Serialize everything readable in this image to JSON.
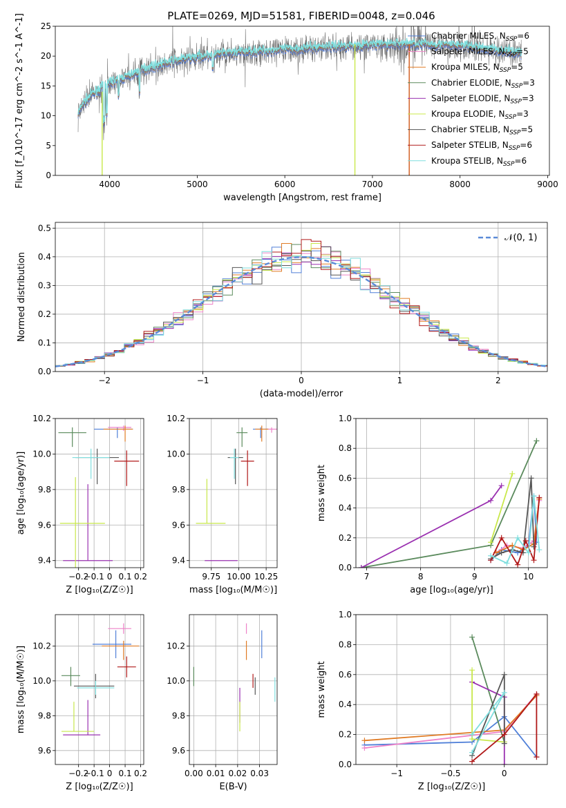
{
  "title": "PLATE=0269, MJD=51581, FIBERID=0048, z=0.046",
  "colors": [
    "#4f7fd8",
    "#ee82c8",
    "#e07b24",
    "#5a8a5c",
    "#9a30b0",
    "#c8e84a",
    "#555555",
    "#b01818",
    "#7fdede"
  ],
  "chart_data": [
    {
      "id": "spectrum",
      "type": "line",
      "xlabel": "wavelength [Angstrom, rest frame]",
      "ylabel": "Flux [f_λ10^-17 erg cm^-2 s^-1 A^-1]",
      "xlim": [
        3380,
        9020
      ],
      "ylim": [
        0,
        25
      ],
      "xticks": [
        4000,
        5000,
        6000,
        7000,
        8000,
        9000
      ],
      "yticks": [
        0,
        5,
        10,
        15,
        20,
        25
      ],
      "legend_placement": "top-right",
      "legend": [
        {
          "label": "Chabrier MILES, N",
          "sub": "SSP",
          "suffix": "=6"
        },
        {
          "label": "Salpeter MILES, N",
          "sub": "SSP",
          "suffix": "=5"
        },
        {
          "label": "Kroupa MILES, N",
          "sub": "SSP",
          "suffix": "=5"
        },
        {
          "label": "Chabrier ELODIE, N",
          "sub": "SSP",
          "suffix": "=3"
        },
        {
          "label": "Salpeter ELODIE, N",
          "sub": "SSP",
          "suffix": "=3"
        },
        {
          "label": "Kroupa ELODIE, N",
          "sub": "SSP",
          "suffix": "=3"
        },
        {
          "label": "Chabrier STELIB, N",
          "sub": "SSP",
          "suffix": "=5"
        },
        {
          "label": "Salpeter STELIB, N",
          "sub": "SSP",
          "suffix": "=6"
        },
        {
          "label": "Kroupa STELIB, N",
          "sub": "SSP",
          "suffix": "=6"
        }
      ],
      "continuum": [
        [
          3600,
          9
        ],
        [
          3700,
          12
        ],
        [
          3800,
          13.5
        ],
        [
          3900,
          14.5
        ],
        [
          4000,
          15.5
        ],
        [
          4200,
          16.5
        ],
        [
          4400,
          17.8
        ],
        [
          4600,
          18.6
        ],
        [
          4800,
          19.3
        ],
        [
          5000,
          19.8
        ],
        [
          5200,
          20.2
        ],
        [
          5500,
          20.6
        ],
        [
          6000,
          21.0
        ],
        [
          6500,
          21.5
        ],
        [
          7000,
          21.8
        ],
        [
          7400,
          22.0
        ],
        [
          8000,
          21.7
        ],
        [
          8500,
          20.8
        ],
        [
          8700,
          20.5
        ]
      ],
      "data_range": [
        3640,
        8700
      ]
    },
    {
      "id": "residuals",
      "type": "histogram",
      "xlabel": "(data-model)/error",
      "ylabel": "Normed distribution",
      "xlim": [
        -2.5,
        2.5
      ],
      "ylim": [
        0,
        0.52
      ],
      "xticks": [
        -2,
        -1,
        0,
        1,
        2
      ],
      "yticks": [
        0.0,
        0.1,
        0.2,
        0.3,
        0.4,
        0.5
      ],
      "grid": true,
      "legend": "𝒩(0, 1)",
      "legend_placement": "top-right",
      "bin_width": 0.1
    },
    {
      "id": "age-vs-Z",
      "type": "errorbar",
      "xlabel": "Z [log₁₀(Z/Z☉)]",
      "ylabel": "age  [log₁₀(age/yr)]",
      "xlim": [
        -0.35,
        0.22
      ],
      "ylim": [
        9.36,
        10.2
      ],
      "xticks": [
        -0.2,
        -0.1,
        0.0,
        0.1,
        0.2
      ],
      "yticks": [
        9.4,
        9.6,
        9.8,
        10.0,
        10.2
      ],
      "grid": true,
      "points": [
        {
          "c": 0,
          "x": 0.05,
          "y": 10.14,
          "xe": [
            0.15,
            0.1
          ],
          "ye": [
            0.05,
            0.01
          ]
        },
        {
          "c": 1,
          "x": 0.09,
          "y": 10.15,
          "xe": [
            0.1,
            0.05
          ],
          "ye": [
            0.02,
            0.01
          ]
        },
        {
          "c": 2,
          "x": 0.1,
          "y": 10.14,
          "xe": [
            0.14,
            0.05
          ],
          "ye": [
            0.07,
            0.02
          ]
        },
        {
          "c": 3,
          "x": -0.24,
          "y": 10.12,
          "xe": [
            0.09,
            0.09
          ],
          "ye": [
            0.08,
            0.03
          ]
        },
        {
          "c": 4,
          "x": -0.14,
          "y": 9.4,
          "xe": [
            0.16,
            0.16
          ],
          "ye": [
            0.0,
            0.43
          ]
        },
        {
          "c": 5,
          "x": -0.22,
          "y": 9.61,
          "xe": [
            0.1,
            0.19
          ],
          "ye": [
            0.3,
            0.26
          ]
        },
        {
          "c": 6,
          "x": -0.08,
          "y": 9.98,
          "xe": [
            0.14,
            0.14
          ],
          "ye": [
            0.15,
            0.05
          ]
        },
        {
          "c": 7,
          "x": 0.11,
          "y": 9.96,
          "xe": [
            0.08,
            0.08
          ],
          "ye": [
            0.14,
            0.06
          ]
        },
        {
          "c": 8,
          "x": -0.12,
          "y": 9.98,
          "xe": [
            0.12,
            0.12
          ],
          "ye": [
            0.12,
            0.05
          ]
        }
      ]
    },
    {
      "id": "age-vs-mass",
      "type": "errorbar",
      "xlabel": "mass [log₁₀(M/M☉)]",
      "ylabel": "",
      "xlim": [
        9.55,
        10.35
      ],
      "ylim": [
        9.36,
        10.2
      ],
      "xticks": [
        9.75,
        10.0,
        10.25
      ],
      "tick_labels": [
        "9.75",
        "10.00",
        "10.25"
      ],
      "yticks": [
        9.4,
        9.6,
        9.8,
        10.0,
        10.2
      ],
      "grid": true,
      "points": [
        {
          "c": 0,
          "x": 10.2,
          "y": 10.14,
          "xe": [
            0.07,
            0.07
          ],
          "ye": [
            0.05,
            0.01
          ]
        },
        {
          "c": 1,
          "x": 10.3,
          "y": 10.14,
          "xe": [
            0.05,
            0.05
          ],
          "ye": [
            0.02,
            0.01
          ]
        },
        {
          "c": 2,
          "x": 10.21,
          "y": 10.14,
          "xe": [
            0.06,
            0.06
          ],
          "ye": [
            0.07,
            0.02
          ]
        },
        {
          "c": 3,
          "x": 10.03,
          "y": 10.12,
          "xe": [
            0.05,
            0.05
          ],
          "ye": [
            0.08,
            0.03
          ]
        },
        {
          "c": 4,
          "x": 9.69,
          "y": 9.4,
          "xe": [
            0.0,
            0.3
          ],
          "ye": [
            0.0,
            0.0
          ]
        },
        {
          "c": 5,
          "x": 9.71,
          "y": 9.61,
          "xe": [
            0.1,
            0.17
          ],
          "ye": [
            0.0,
            0.25
          ]
        },
        {
          "c": 6,
          "x": 9.97,
          "y": 9.98,
          "xe": [
            0.07,
            0.07
          ],
          "ye": [
            0.15,
            0.05
          ]
        },
        {
          "c": 7,
          "x": 10.08,
          "y": 9.96,
          "xe": [
            0.06,
            0.06
          ],
          "ye": [
            0.14,
            0.06
          ]
        },
        {
          "c": 8,
          "x": 9.96,
          "y": 9.98,
          "xe": [
            0.04,
            0.04
          ],
          "ye": [
            0.12,
            0.05
          ]
        }
      ]
    },
    {
      "id": "weight-vs-age",
      "type": "line",
      "xlabel": "age  [log₁₀(age/yr)]",
      "ylabel": "mass weight",
      "xlim": [
        6.8,
        10.35
      ],
      "ylim": [
        0,
        1
      ],
      "xticks": [
        7,
        8,
        9,
        10
      ],
      "yticks": [
        0.0,
        0.2,
        0.4,
        0.6,
        0.8,
        1.0
      ],
      "grid": true,
      "series": [
        {
          "c": 0,
          "x": [
            9.3,
            9.5,
            9.8,
            10.0,
            10.1,
            10.15
          ],
          "y": [
            0.05,
            0.12,
            0.1,
            0.15,
            0.48,
            0.17
          ]
        },
        {
          "c": 1,
          "x": [
            9.4,
            9.6,
            9.9,
            10.1,
            10.2
          ],
          "y": [
            0.1,
            0.15,
            0.13,
            0.18,
            0.45
          ]
        },
        {
          "c": 2,
          "x": [
            9.4,
            9.7,
            9.9,
            10.1,
            10.2
          ],
          "y": [
            0.1,
            0.15,
            0.12,
            0.16,
            0.46
          ]
        },
        {
          "c": 3,
          "x": [
            6.9,
            9.3,
            10.15
          ],
          "y": [
            0.0,
            0.15,
            0.85
          ]
        },
        {
          "c": 4,
          "x": [
            6.9,
            9.3,
            9.5
          ],
          "y": [
            0.0,
            0.45,
            0.55
          ]
        },
        {
          "c": 5,
          "x": [
            9.3,
            9.7
          ],
          "y": [
            0.17,
            0.63
          ]
        },
        {
          "c": 6,
          "x": [
            9.3,
            9.5,
            9.7,
            9.9,
            10.05,
            10.1
          ],
          "y": [
            0.06,
            0.1,
            0.12,
            0.1,
            0.6,
            0.14
          ]
        },
        {
          "c": 7,
          "x": [
            9.3,
            9.5,
            9.8,
            9.95,
            10.1,
            10.2
          ],
          "y": [
            0.05,
            0.2,
            0.02,
            0.18,
            0.05,
            0.47
          ]
        },
        {
          "c": 8,
          "x": [
            9.3,
            9.6,
            9.8,
            10.0,
            10.1,
            10.2
          ],
          "y": [
            0.08,
            0.03,
            0.2,
            0.1,
            0.48,
            0.12
          ]
        }
      ]
    },
    {
      "id": "mass-vs-Z",
      "type": "errorbar",
      "xlabel": "Z [log₁₀(Z/Z☉)]",
      "ylabel": "mass [log₁₀(M/M☉)]",
      "xlim": [
        -0.35,
        0.22
      ],
      "ylim": [
        9.52,
        10.38
      ],
      "xticks": [
        -0.2,
        -0.1,
        0.0,
        0.1,
        0.2
      ],
      "yticks": [
        9.6,
        9.8,
        10.0,
        10.2
      ],
      "grid": true,
      "points": [
        {
          "c": 0,
          "x": 0.04,
          "y": 10.21,
          "xe": [
            0.15,
            0.1
          ],
          "ye": [
            0.08,
            0.08
          ]
        },
        {
          "c": 1,
          "x": 0.09,
          "y": 10.3,
          "xe": [
            0.1,
            0.05
          ],
          "ye": [
            0.03,
            0.03
          ]
        },
        {
          "c": 2,
          "x": 0.09,
          "y": 10.2,
          "xe": [
            0.14,
            0.1
          ],
          "ye": [
            0.08,
            0.03
          ]
        },
        {
          "c": 3,
          "x": -0.25,
          "y": 10.03,
          "xe": [
            0.06,
            0.06
          ],
          "ye": [
            0.06,
            0.05
          ]
        },
        {
          "c": 4,
          "x": -0.14,
          "y": 9.69,
          "xe": [
            0.16,
            0.08
          ],
          "ye": [
            0.0,
            0.2
          ]
        },
        {
          "c": 5,
          "x": -0.23,
          "y": 9.71,
          "xe": [
            0.08,
            0.13
          ],
          "ye": [
            0.0,
            0.17
          ]
        },
        {
          "c": 6,
          "x": -0.09,
          "y": 9.97,
          "xe": [
            0.14,
            0.12
          ],
          "ye": [
            0.07,
            0.07
          ]
        },
        {
          "c": 7,
          "x": 0.11,
          "y": 10.08,
          "xe": [
            0.06,
            0.06
          ],
          "ye": [
            0.06,
            0.06
          ]
        },
        {
          "c": 8,
          "x": -0.09,
          "y": 9.96,
          "xe": [
            0.12,
            0.12
          ],
          "ye": [
            0.04,
            0.04
          ]
        }
      ]
    },
    {
      "id": "mass-vs-ebv",
      "type": "errorbar",
      "xlabel": "E(B-V)",
      "ylabel": "",
      "xlim": [
        -0.002,
        0.038
      ],
      "ylim": [
        9.52,
        10.38
      ],
      "xticks": [
        0.0,
        0.01,
        0.02,
        0.03
      ],
      "tick_labels": [
        "0.00",
        "0.01",
        "0.02",
        "0.03"
      ],
      "yticks": [
        9.6,
        9.8,
        10.0,
        10.2
      ],
      "grid": true,
      "points": [
        {
          "c": 0,
          "x": 0.031,
          "y": 10.21,
          "xe": [
            0,
            0
          ],
          "ye": [
            0.08,
            0.08
          ]
        },
        {
          "c": 1,
          "x": 0.024,
          "y": 10.3,
          "xe": [
            0,
            0
          ],
          "ye": [
            0.03,
            0.03
          ]
        },
        {
          "c": 2,
          "x": 0.024,
          "y": 10.2,
          "xe": [
            0,
            0
          ],
          "ye": [
            0.08,
            0.03
          ]
        },
        {
          "c": 3,
          "x": 0.0,
          "y": 10.03,
          "xe": [
            0,
            0
          ],
          "ye": [
            0.06,
            0.05
          ]
        },
        {
          "c": 4,
          "x": 0.021,
          "y": 9.86,
          "xe": [
            0,
            0
          ],
          "ye": [
            0.1,
            0.1
          ]
        },
        {
          "c": 5,
          "x": 0.021,
          "y": 9.71,
          "xe": [
            0,
            0
          ],
          "ye": [
            0.0,
            0.17
          ]
        },
        {
          "c": 6,
          "x": 0.028,
          "y": 9.97,
          "xe": [
            0,
            0
          ],
          "ye": [
            0.05,
            0.05
          ]
        },
        {
          "c": 7,
          "x": 0.027,
          "y": 10.0,
          "xe": [
            0,
            0
          ],
          "ye": [
            0.04,
            0.04
          ]
        },
        {
          "c": 8,
          "x": 0.037,
          "y": 9.95,
          "xe": [
            0,
            0
          ],
          "ye": [
            0.07,
            0.07
          ]
        }
      ]
    },
    {
      "id": "weight-vs-Z",
      "type": "line",
      "xlabel": "Z [log₁₀(Z/Z☉)]",
      "ylabel": "mass weight",
      "xlim": [
        -1.38,
        0.4
      ],
      "ylim": [
        0,
        1
      ],
      "xticks": [
        -1.0,
        -0.5,
        0.0
      ],
      "yticks": [
        0.0,
        0.2,
        0.4,
        0.6,
        0.8,
        1.0
      ],
      "grid": true,
      "series": [
        {
          "c": 0,
          "x": [
            -1.3,
            -0.3,
            0.0,
            0.3
          ],
          "y": [
            0.13,
            0.15,
            0.32,
            0.05
          ]
        },
        {
          "c": 1,
          "x": [
            -1.3,
            0.0,
            0.3
          ],
          "y": [
            0.11,
            0.22,
            0.47
          ]
        },
        {
          "c": 2,
          "x": [
            -1.3,
            0.0,
            0.3
          ],
          "y": [
            0.16,
            0.23,
            0.46
          ]
        },
        {
          "c": 3,
          "x": [
            -0.3,
            0.0
          ],
          "y": [
            0.85,
            0.15
          ]
        },
        {
          "c": 4,
          "x": [
            -0.3,
            0.0,
            0.0
          ],
          "y": [
            0.55,
            0.45,
            0.0
          ]
        },
        {
          "c": 5,
          "x": [
            -0.3,
            -0.3,
            0.0
          ],
          "y": [
            0.63,
            0.17,
            0.15
          ]
        },
        {
          "c": 6,
          "x": [
            -0.3,
            0.0,
            0.0
          ],
          "y": [
            0.06,
            0.6,
            0.14
          ]
        },
        {
          "c": 7,
          "x": [
            -0.3,
            0.0,
            0.3,
            0.3
          ],
          "y": [
            0.02,
            0.2,
            0.47,
            0.05
          ]
        },
        {
          "c": 8,
          "x": [
            -0.3,
            0.0,
            -0.3
          ],
          "y": [
            0.08,
            0.48,
            0.2
          ]
        }
      ]
    }
  ]
}
